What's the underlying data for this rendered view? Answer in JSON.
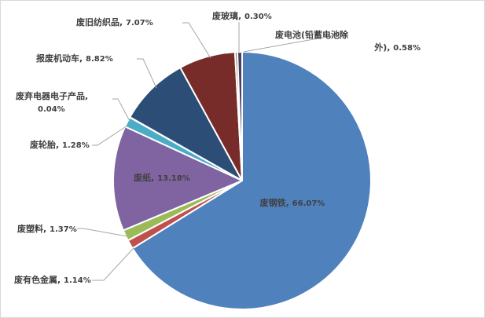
{
  "chart_data": {
    "type": "pie",
    "title": "",
    "slices": [
      {
        "name": "废钢铁",
        "value": 66.07,
        "label": "66.07%",
        "color": "#4f81bd"
      },
      {
        "name": "废有色金属",
        "value": 1.14,
        "label": "1.14%",
        "color": "#c0504d"
      },
      {
        "name": "废塑料",
        "value": 1.37,
        "label": "1.37%",
        "color": "#9bbb59"
      },
      {
        "name": "废纸",
        "value": 13.18,
        "label": "13.18%",
        "color": "#8064a2"
      },
      {
        "name": "废轮胎",
        "value": 1.28,
        "label": "1.28%",
        "color": "#4bacc6"
      },
      {
        "name": "废弃电器电子产品",
        "value": 0.04,
        "label": "0.04%",
        "color": "#f79646"
      },
      {
        "name": "报废机动车",
        "value": 8.82,
        "label": "8.82%",
        "color": "#2c4d75"
      },
      {
        "name": "废旧纺织品",
        "value": 7.07,
        "label": "7.07%",
        "color": "#772c2a"
      },
      {
        "name": "废玻璃",
        "value": 0.3,
        "label": "0.30%",
        "color": "#5f7530"
      },
      {
        "name": "废电池(铅蓄电池除外)",
        "value": 0.58,
        "label": "0.58%",
        "color": "#4d3b62"
      }
    ],
    "legend": "none",
    "colors": {
      "border": "#ffffff",
      "leader": "#a6a6a6",
      "text": "#404040",
      "frame": "#d9d9d9"
    }
  }
}
